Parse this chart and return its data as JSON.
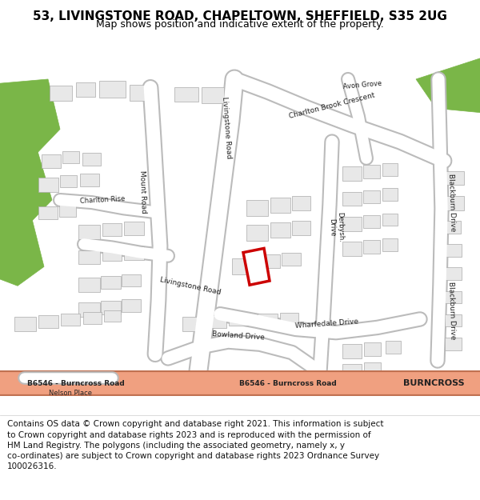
{
  "title": "53, LIVINGSTONE ROAD, CHAPELTOWN, SHEFFIELD, S35 2UG",
  "subtitle": "Map shows position and indicative extent of the property.",
  "footer_lines": [
    "Contains OS data © Crown copyright and database right 2021. This information is subject",
    "to Crown copyright and database rights 2023 and is reproduced with the permission of",
    "HM Land Registry. The polygons (including the associated geometry, namely x, y",
    "co-ordinates) are subject to Crown copyright and database rights 2023 Ordnance Survey",
    "100026316."
  ],
  "bg_color": "#ffffff",
  "map_bg": "#f0f0f0",
  "green_color": "#7ab648",
  "highlight_color": "#cc0000",
  "burncross_road_color": "#f0a080",
  "title_fontsize": 11,
  "subtitle_fontsize": 9,
  "footer_fontsize": 7.5
}
